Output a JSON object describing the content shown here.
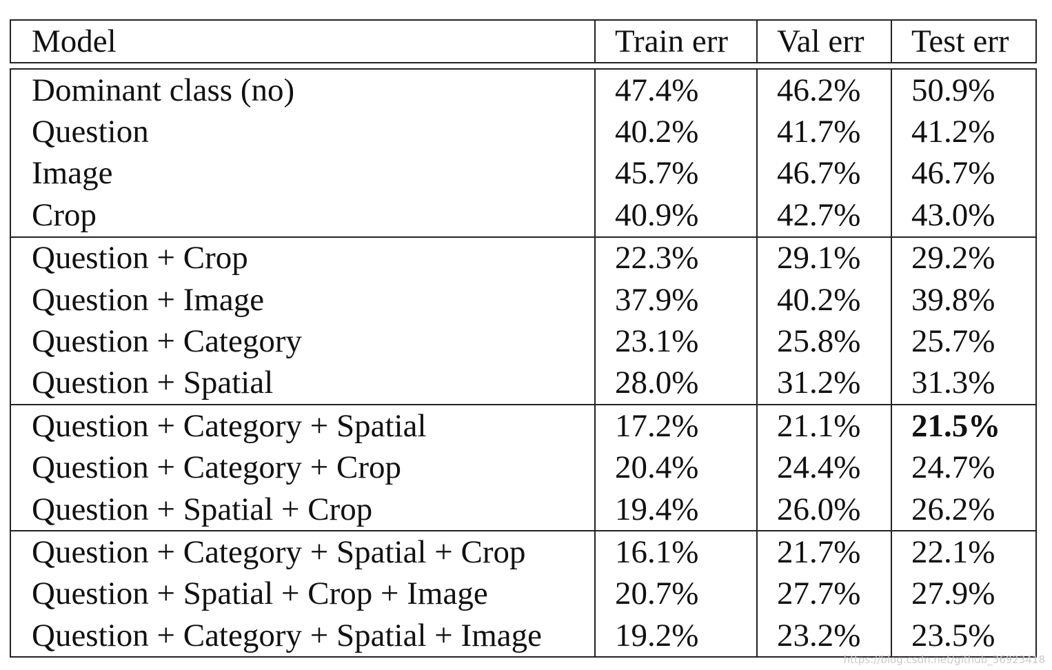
{
  "header": {
    "model": "Model",
    "train": "Train err",
    "val": "Val err",
    "test": "Test err"
  },
  "groups": [
    {
      "rows": [
        {
          "model": "Dominant class (no)",
          "train": "47.4%",
          "val": "46.2%",
          "test": "50.9%"
        },
        {
          "model": "Question",
          "train": "40.2%",
          "val": "41.7%",
          "test": "41.2%"
        },
        {
          "model": "Image",
          "train": "45.7%",
          "val": "46.7%",
          "test": "46.7%"
        },
        {
          "model": "Crop",
          "train": "40.9%",
          "val": "42.7%",
          "test": "43.0%"
        }
      ]
    },
    {
      "rows": [
        {
          "model": "Question + Crop",
          "train": "22.3%",
          "val": "29.1%",
          "test": "29.2%"
        },
        {
          "model": "Question + Image",
          "train": "37.9%",
          "val": "40.2%",
          "test": "39.8%"
        },
        {
          "model": "Question + Category",
          "train": "23.1%",
          "val": "25.8%",
          "test": "25.7%"
        },
        {
          "model": "Question + Spatial",
          "train": "28.0%",
          "val": "31.2%",
          "test": "31.3%"
        }
      ]
    },
    {
      "rows": [
        {
          "model": "Question + Category + Spatial",
          "train": "17.2%",
          "val": "21.1%",
          "test": "21.5%",
          "test_bold": true
        },
        {
          "model": "Question + Category + Crop",
          "train": "20.4%",
          "val": "24.4%",
          "test": "24.7%"
        },
        {
          "model": "Question + Spatial + Crop",
          "train": "19.4%",
          "val": "26.0%",
          "test": "26.2%"
        }
      ]
    },
    {
      "rows": [
        {
          "model": "Question + Category + Spatial + Crop",
          "train": "16.1%",
          "val": "21.7%",
          "test": "22.1%"
        },
        {
          "model": "Question + Spatial + Crop + Image",
          "train": "20.7%",
          "val": "27.7%",
          "test": "27.9%"
        },
        {
          "model": "Question + Category + Spatial + Image",
          "train": "19.2%",
          "val": "23.2%",
          "test": "23.5%"
        }
      ]
    }
  ],
  "watermark": "https://blog.csdn.net/github_36923418"
}
